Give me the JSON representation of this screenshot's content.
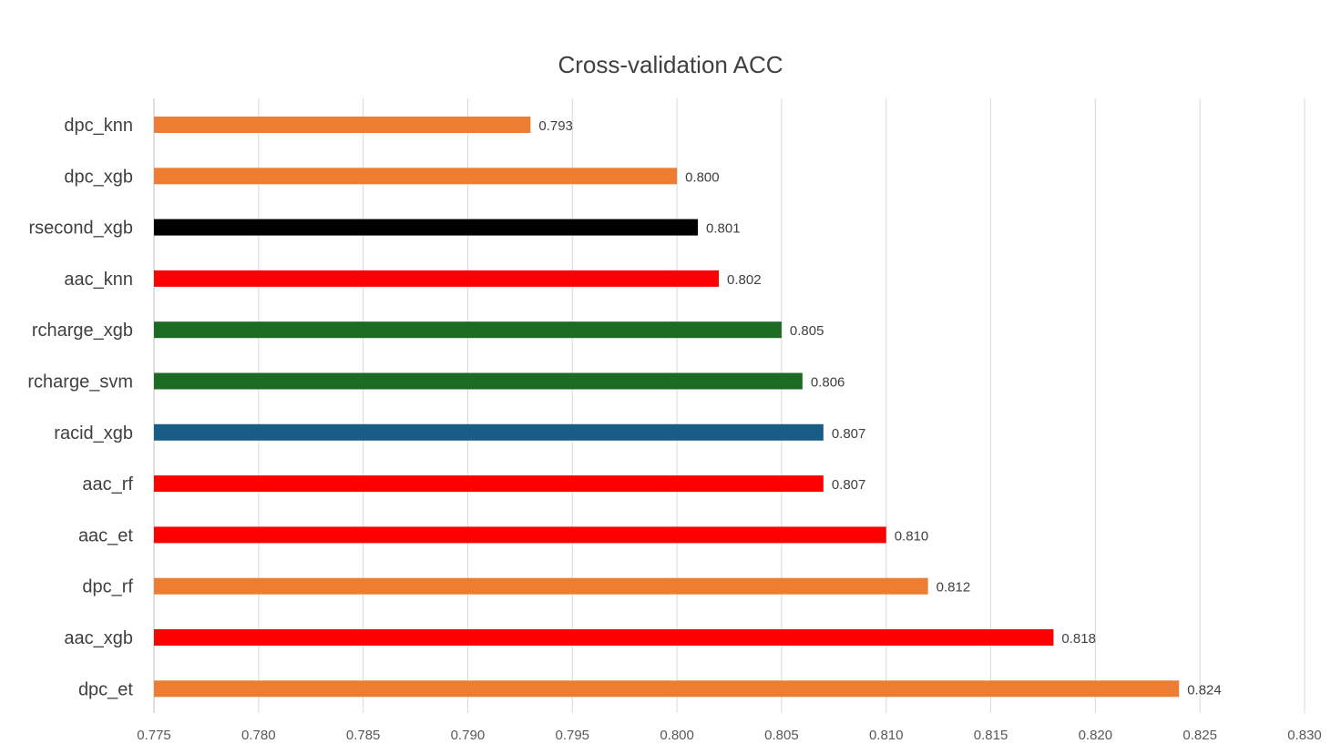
{
  "chart_data": {
    "type": "bar",
    "orientation": "horizontal",
    "title": "Cross-validation ACC",
    "xlabel": "",
    "ylabel": "",
    "xlim": [
      0.775,
      0.83
    ],
    "x_ticks": [
      "0.775",
      "0.780",
      "0.785",
      "0.790",
      "0.795",
      "0.800",
      "0.805",
      "0.810",
      "0.815",
      "0.820",
      "0.825",
      "0.830"
    ],
    "grid": "vertical",
    "legend": "none",
    "categories": [
      "dpc_knn",
      "dpc_xgb",
      "rsecond_xgb",
      "aac_knn",
      "rcharge_xgb",
      "rcharge_svm",
      "racid_xgb",
      "aac_rf",
      "aac_et",
      "dpc_rf",
      "aac_xgb",
      "dpc_et"
    ],
    "values": [
      0.793,
      0.8,
      0.801,
      0.802,
      0.805,
      0.806,
      0.807,
      0.807,
      0.81,
      0.812,
      0.818,
      0.824
    ],
    "data_labels": [
      "0.793",
      "0.800",
      "0.801",
      "0.802",
      "0.805",
      "0.806",
      "0.807",
      "0.807",
      "0.810",
      "0.812",
      "0.818",
      "0.824"
    ],
    "colors": [
      "#ED7D31",
      "#ED7D31",
      "#000000",
      "#FF0000",
      "#1C6B23",
      "#1C6B23",
      "#175D85",
      "#FF0000",
      "#FF0000",
      "#ED7D31",
      "#FF0000",
      "#ED7D31"
    ]
  }
}
